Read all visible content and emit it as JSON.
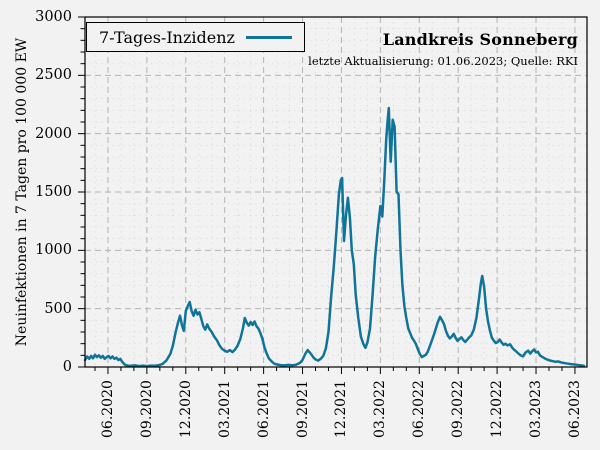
{
  "header": {
    "title": "Landkreis Sonneberg",
    "subtitle": "letzte Aktualisierung: 01.06.2023; Quelle: RKI"
  },
  "colors": {
    "line": "#0f7499",
    "background": "#f2f2f2",
    "grid_major": "#b3b3b3",
    "grid_minor": "#bababa",
    "frame": "#000000",
    "text": "#000000"
  },
  "chart_data": {
    "type": "line",
    "title": "Landkreis Sonneberg",
    "subtitle": "letzte Aktualisierung: 01.06.2023; Quelle: RKI",
    "xlabel": "",
    "ylabel": "Neuinfektionen in 7 Tagen pro 100 000 EW",
    "ylim": [
      0,
      3000
    ],
    "y_major_step": 500,
    "y_minor_step": 100,
    "y_tick_labels": [
      "0",
      "500",
      "1000",
      "1500",
      "2000",
      "2500",
      "3000"
    ],
    "x_unit": "months since 2020-06-01",
    "xlim": [
      -1.77,
      36.93
    ],
    "x_minor_step_months": 1,
    "x_major_ticks": [
      {
        "t": 0,
        "label": "06.2020"
      },
      {
        "t": 3,
        "label": "09.2020"
      },
      {
        "t": 6,
        "label": "12.2020"
      },
      {
        "t": 9,
        "label": "03.2021"
      },
      {
        "t": 12,
        "label": "06.2021"
      },
      {
        "t": 15,
        "label": "09.2021"
      },
      {
        "t": 18,
        "label": "12.2021"
      },
      {
        "t": 21,
        "label": "03.2022"
      },
      {
        "t": 24,
        "label": "06.2022"
      },
      {
        "t": 27,
        "label": "09.2022"
      },
      {
        "t": 30,
        "label": "12.2022"
      },
      {
        "t": 33,
        "label": "03.2023"
      },
      {
        "t": 36,
        "label": "06.2023"
      }
    ],
    "grid": {
      "major": "dashed",
      "minor": "dotted"
    },
    "legend_position": "top-left",
    "series": [
      {
        "name": "7-Tages-Inzidenz",
        "color": "#0f7499",
        "points": [
          [
            -1.77,
            60
          ],
          [
            -1.6,
            90
          ],
          [
            -1.45,
            70
          ],
          [
            -1.3,
            95
          ],
          [
            -1.15,
            75
          ],
          [
            -1.0,
            105
          ],
          [
            -0.85,
            85
          ],
          [
            -0.7,
            100
          ],
          [
            -0.55,
            80
          ],
          [
            -0.4,
            95
          ],
          [
            -0.25,
            70
          ],
          [
            -0.1,
            85
          ],
          [
            0.05,
            95
          ],
          [
            0.2,
            75
          ],
          [
            0.35,
            90
          ],
          [
            0.5,
            70
          ],
          [
            0.65,
            80
          ],
          [
            0.8,
            60
          ],
          [
            0.95,
            70
          ],
          [
            1.1,
            45
          ],
          [
            1.3,
            20
          ],
          [
            1.5,
            12
          ],
          [
            1.8,
            10
          ],
          [
            2.1,
            14
          ],
          [
            2.4,
            8
          ],
          [
            2.7,
            12
          ],
          [
            3.0,
            8
          ],
          [
            3.3,
            12
          ],
          [
            3.6,
            10
          ],
          [
            3.9,
            15
          ],
          [
            4.2,
            25
          ],
          [
            4.5,
            55
          ],
          [
            4.8,
            110
          ],
          [
            5.0,
            180
          ],
          [
            5.2,
            290
          ],
          [
            5.4,
            380
          ],
          [
            5.55,
            440
          ],
          [
            5.7,
            360
          ],
          [
            5.85,
            310
          ],
          [
            6.0,
            480
          ],
          [
            6.15,
            520
          ],
          [
            6.3,
            557
          ],
          [
            6.45,
            480
          ],
          [
            6.6,
            440
          ],
          [
            6.75,
            490
          ],
          [
            6.9,
            450
          ],
          [
            7.05,
            470
          ],
          [
            7.2,
            410
          ],
          [
            7.35,
            350
          ],
          [
            7.5,
            320
          ],
          [
            7.65,
            365
          ],
          [
            7.8,
            330
          ],
          [
            8.0,
            300
          ],
          [
            8.2,
            260
          ],
          [
            8.4,
            230
          ],
          [
            8.6,
            185
          ],
          [
            8.8,
            155
          ],
          [
            9.0,
            140
          ],
          [
            9.2,
            130
          ],
          [
            9.4,
            145
          ],
          [
            9.6,
            128
          ],
          [
            9.8,
            150
          ],
          [
            10.0,
            185
          ],
          [
            10.2,
            240
          ],
          [
            10.4,
            330
          ],
          [
            10.55,
            420
          ],
          [
            10.7,
            380
          ],
          [
            10.85,
            355
          ],
          [
            11.0,
            385
          ],
          [
            11.15,
            360
          ],
          [
            11.3,
            390
          ],
          [
            11.45,
            350
          ],
          [
            11.6,
            330
          ],
          [
            11.75,
            290
          ],
          [
            11.9,
            245
          ],
          [
            12.05,
            175
          ],
          [
            12.2,
            125
          ],
          [
            12.4,
            75
          ],
          [
            12.6,
            50
          ],
          [
            12.8,
            30
          ],
          [
            13.0,
            22
          ],
          [
            13.3,
            16
          ],
          [
            13.6,
            14
          ],
          [
            13.9,
            18
          ],
          [
            14.2,
            15
          ],
          [
            14.5,
            20
          ],
          [
            14.8,
            35
          ],
          [
            15.0,
            60
          ],
          [
            15.2,
            110
          ],
          [
            15.4,
            145
          ],
          [
            15.55,
            125
          ],
          [
            15.7,
            105
          ],
          [
            15.85,
            80
          ],
          [
            16.0,
            65
          ],
          [
            16.2,
            55
          ],
          [
            16.4,
            70
          ],
          [
            16.6,
            95
          ],
          [
            16.8,
            160
          ],
          [
            17.0,
            300
          ],
          [
            17.2,
            600
          ],
          [
            17.4,
            850
          ],
          [
            17.6,
            1150
          ],
          [
            17.8,
            1480
          ],
          [
            17.95,
            1600
          ],
          [
            18.05,
            1620
          ],
          [
            18.2,
            1080
          ],
          [
            18.35,
            1300
          ],
          [
            18.5,
            1450
          ],
          [
            18.65,
            1280
          ],
          [
            18.8,
            1000
          ],
          [
            18.95,
            880
          ],
          [
            19.1,
            620
          ],
          [
            19.3,
            420
          ],
          [
            19.5,
            260
          ],
          [
            19.7,
            195
          ],
          [
            19.85,
            165
          ],
          [
            20.0,
            210
          ],
          [
            20.2,
            330
          ],
          [
            20.4,
            620
          ],
          [
            20.6,
            950
          ],
          [
            20.8,
            1180
          ],
          [
            21.0,
            1380
          ],
          [
            21.15,
            1290
          ],
          [
            21.3,
            1600
          ],
          [
            21.45,
            1950
          ],
          [
            21.55,
            2100
          ],
          [
            21.65,
            2220
          ],
          [
            21.8,
            1760
          ],
          [
            21.95,
            2120
          ],
          [
            22.1,
            2060
          ],
          [
            22.25,
            1500
          ],
          [
            22.4,
            1480
          ],
          [
            22.55,
            1000
          ],
          [
            22.7,
            700
          ],
          [
            22.85,
            520
          ],
          [
            23.0,
            420
          ],
          [
            23.15,
            330
          ],
          [
            23.3,
            290
          ],
          [
            23.45,
            250
          ],
          [
            23.6,
            225
          ],
          [
            23.75,
            195
          ],
          [
            23.9,
            150
          ],
          [
            24.05,
            110
          ],
          [
            24.2,
            85
          ],
          [
            24.35,
            95
          ],
          [
            24.5,
            105
          ],
          [
            24.65,
            130
          ],
          [
            24.8,
            175
          ],
          [
            25.0,
            235
          ],
          [
            25.2,
            300
          ],
          [
            25.4,
            375
          ],
          [
            25.6,
            430
          ],
          [
            25.75,
            400
          ],
          [
            25.9,
            370
          ],
          [
            26.05,
            310
          ],
          [
            26.2,
            270
          ],
          [
            26.35,
            245
          ],
          [
            26.5,
            260
          ],
          [
            26.65,
            285
          ],
          [
            26.8,
            250
          ],
          [
            26.95,
            225
          ],
          [
            27.1,
            240
          ],
          [
            27.25,
            255
          ],
          [
            27.4,
            230
          ],
          [
            27.55,
            215
          ],
          [
            27.7,
            235
          ],
          [
            27.85,
            255
          ],
          [
            28.0,
            270
          ],
          [
            28.2,
            320
          ],
          [
            28.4,
            420
          ],
          [
            28.6,
            580
          ],
          [
            28.75,
            720
          ],
          [
            28.85,
            780
          ],
          [
            29.0,
            690
          ],
          [
            29.15,
            500
          ],
          [
            29.3,
            390
          ],
          [
            29.45,
            310
          ],
          [
            29.6,
            250
          ],
          [
            29.75,
            225
          ],
          [
            29.9,
            205
          ],
          [
            30.05,
            215
          ],
          [
            30.2,
            235
          ],
          [
            30.35,
            210
          ],
          [
            30.5,
            190
          ],
          [
            30.65,
            200
          ],
          [
            30.8,
            185
          ],
          [
            31.0,
            195
          ],
          [
            31.2,
            160
          ],
          [
            31.4,
            140
          ],
          [
            31.6,
            120
          ],
          [
            31.8,
            100
          ],
          [
            32.0,
            92
          ],
          [
            32.2,
            125
          ],
          [
            32.4,
            140
          ],
          [
            32.55,
            115
          ],
          [
            32.7,
            135
          ],
          [
            32.85,
            150
          ],
          [
            33.0,
            125
          ],
          [
            33.15,
            130
          ],
          [
            33.3,
            100
          ],
          [
            33.5,
            85
          ],
          [
            33.7,
            72
          ],
          [
            33.9,
            62
          ],
          [
            34.1,
            55
          ],
          [
            34.3,
            50
          ],
          [
            34.5,
            45
          ],
          [
            34.7,
            48
          ],
          [
            34.9,
            40
          ],
          [
            35.1,
            35
          ],
          [
            35.3,
            32
          ],
          [
            35.5,
            28
          ],
          [
            35.7,
            25
          ],
          [
            35.9,
            22
          ],
          [
            36.1,
            20
          ],
          [
            36.3,
            16
          ],
          [
            36.5,
            14
          ],
          [
            36.7,
            10
          ]
        ]
      }
    ]
  }
}
